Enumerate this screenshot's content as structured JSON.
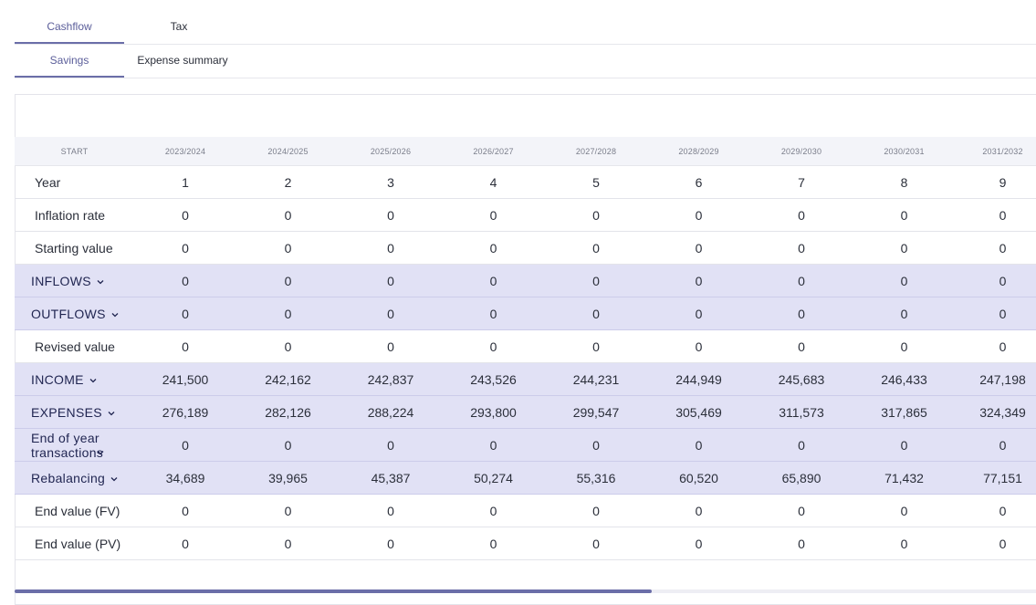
{
  "tabs_row1": [
    {
      "label": "Cashflow",
      "active": true
    },
    {
      "label": "Tax",
      "active": false
    }
  ],
  "tabs_row2": [
    {
      "label": "Savings",
      "active": true
    },
    {
      "label": "Expense summary",
      "active": false
    }
  ],
  "table": {
    "start_label": "START",
    "periods": [
      "2023/2024",
      "2024/2025",
      "2025/2026",
      "2026/2027",
      "2027/2028",
      "2028/2029",
      "2029/2030",
      "2030/2031",
      "2031/2032"
    ],
    "rows": [
      {
        "label": "Year",
        "group": false,
        "expandable": false,
        "values": [
          "1",
          "2",
          "3",
          "4",
          "5",
          "6",
          "7",
          "8",
          "9"
        ]
      },
      {
        "label": "Inflation rate",
        "group": false,
        "expandable": false,
        "values": [
          "0",
          "0",
          "0",
          "0",
          "0",
          "0",
          "0",
          "0",
          "0"
        ]
      },
      {
        "label": "Starting value",
        "group": false,
        "expandable": false,
        "values": [
          "0",
          "0",
          "0",
          "0",
          "0",
          "0",
          "0",
          "0",
          "0"
        ]
      },
      {
        "label": "INFLOWS",
        "group": true,
        "expandable": true,
        "values": [
          "0",
          "0",
          "0",
          "0",
          "0",
          "0",
          "0",
          "0",
          "0"
        ]
      },
      {
        "label": "OUTFLOWS",
        "group": true,
        "expandable": true,
        "values": [
          "0",
          "0",
          "0",
          "0",
          "0",
          "0",
          "0",
          "0",
          "0"
        ]
      },
      {
        "label": "Revised value",
        "group": false,
        "expandable": false,
        "values": [
          "0",
          "0",
          "0",
          "0",
          "0",
          "0",
          "0",
          "0",
          "0"
        ]
      },
      {
        "label": "INCOME",
        "group": true,
        "expandable": true,
        "values": [
          "241,500",
          "242,162",
          "242,837",
          "243,526",
          "244,231",
          "244,949",
          "245,683",
          "246,433",
          "247,198"
        ]
      },
      {
        "label": "EXPENSES",
        "group": true,
        "expandable": true,
        "values": [
          "276,189",
          "282,126",
          "288,224",
          "293,800",
          "299,547",
          "305,469",
          "311,573",
          "317,865",
          "324,349"
        ]
      },
      {
        "label": "End of year transactions",
        "group": true,
        "expandable": true,
        "values": [
          "0",
          "0",
          "0",
          "0",
          "0",
          "0",
          "0",
          "0",
          "0"
        ]
      },
      {
        "label": "Rebalancing",
        "group": true,
        "expandable": true,
        "values": [
          "34,689",
          "39,965",
          "45,387",
          "50,274",
          "55,316",
          "60,520",
          "65,890",
          "71,432",
          "77,151"
        ]
      },
      {
        "label": "End value (FV)",
        "group": false,
        "expandable": false,
        "values": [
          "0",
          "0",
          "0",
          "0",
          "0",
          "0",
          "0",
          "0",
          "0"
        ]
      },
      {
        "label": "End value (PV)",
        "group": false,
        "expandable": false,
        "values": [
          "0",
          "0",
          "0",
          "0",
          "0",
          "0",
          "0",
          "0",
          "0"
        ]
      }
    ]
  },
  "colors": {
    "accent": "#6b6ea8",
    "group_row_bg": "#e1e1f5",
    "header_bg": "#f3f4f9"
  },
  "icons": {
    "expand": "chevron-down-icon"
  }
}
